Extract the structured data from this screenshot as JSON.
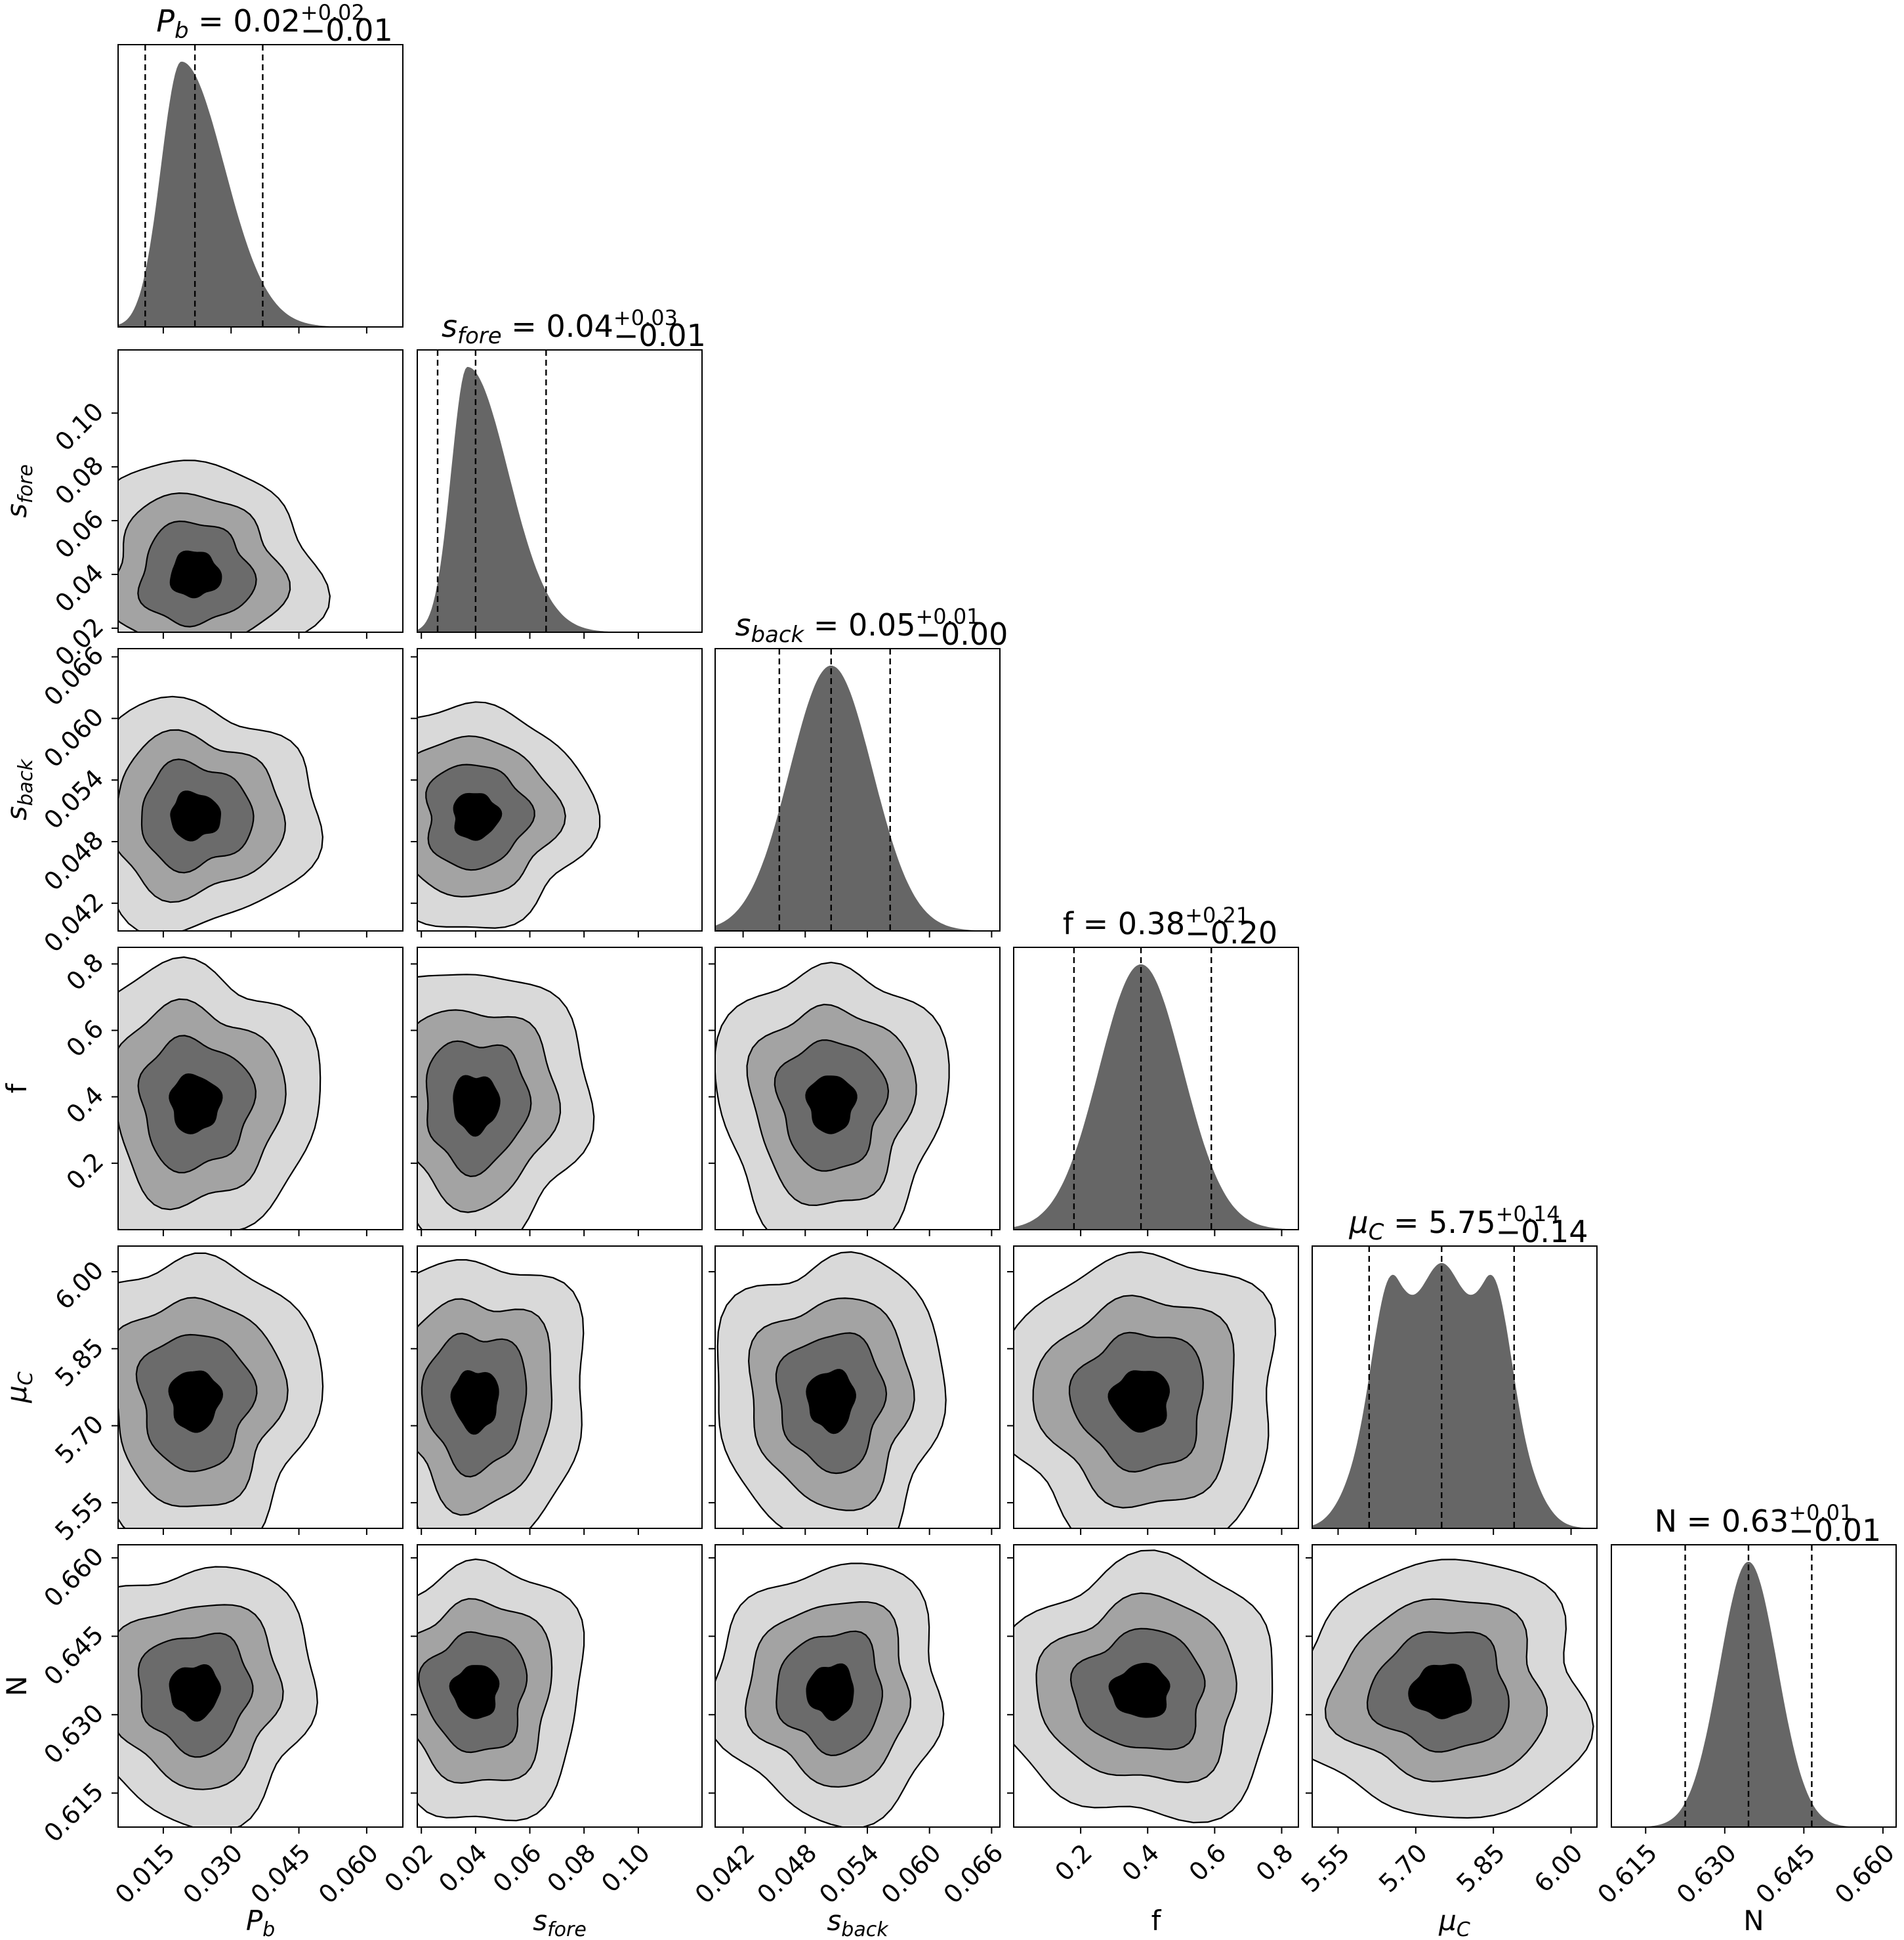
{
  "chart_data": {
    "type": "corner",
    "parameters": [
      {
        "key": "Pb",
        "sym": "P",
        "sub": "b",
        "italic": true,
        "median": 0.022,
        "q16": 0.011,
        "q84": 0.037,
        "range": [
          0.005,
          0.068
        ],
        "ticks": [
          "0.015",
          "0.030",
          "0.045",
          "0.060"
        ],
        "title": {
          "lhs_sym": "P",
          "lhs_sub": "b",
          "value": "0.02",
          "plus": "+0.02",
          "minus": "−0.01"
        }
      },
      {
        "key": "sfore",
        "sym": "s",
        "sub": "fore",
        "italic": true,
        "median": 0.04,
        "q16": 0.026,
        "q84": 0.066,
        "range": [
          0.0185,
          0.1235
        ],
        "ticks": [
          "0.02",
          "0.04",
          "0.06",
          "0.08",
          "0.10"
        ],
        "title": {
          "lhs_sym": "s",
          "lhs_sub": "fore",
          "value": "0.04",
          "plus": "+0.03",
          "minus": "−0.01"
        }
      },
      {
        "key": "sback",
        "sym": "s",
        "sub": "back",
        "italic": true,
        "median": 0.0505,
        "q16": 0.0455,
        "q84": 0.0562,
        "range": [
          0.0393,
          0.0668
        ],
        "ticks": [
          "0.042",
          "0.048",
          "0.054",
          "0.060",
          "0.066"
        ],
        "title": {
          "lhs_sym": "s",
          "lhs_sub": "back",
          "value": "0.05",
          "plus": "+0.01",
          "minus": "−0.00"
        }
      },
      {
        "key": "f",
        "sym": "f",
        "sub": "",
        "italic": false,
        "median": 0.38,
        "q16": 0.18,
        "q84": 0.59,
        "range": [
          0.0,
          0.85
        ],
        "ticks": [
          "0.2",
          "0.4",
          "0.6",
          "0.8"
        ],
        "title": {
          "lhs_sym": "f",
          "lhs_sub": "",
          "value": "0.38",
          "plus": "+0.21",
          "minus": "−0.20"
        }
      },
      {
        "key": "muC",
        "sym": "μ",
        "sub": "C",
        "italic": true,
        "median": 5.75,
        "q16": 5.61,
        "q84": 5.89,
        "range": [
          5.5,
          6.05
        ],
        "ticks": [
          "5.55",
          "5.70",
          "5.85",
          "6.00"
        ],
        "title": {
          "lhs_sym": "μ",
          "lhs_sub": "C",
          "value": "5.75",
          "plus": "+0.14",
          "minus": "−0.14"
        }
      },
      {
        "key": "N",
        "sym": "N",
        "sub": "",
        "italic": false,
        "median": 0.6345,
        "q16": 0.6225,
        "q84": 0.6465,
        "range": [
          0.6085,
          0.6625
        ],
        "ticks": [
          "0.615",
          "0.630",
          "0.645",
          "0.660"
        ],
        "title": {
          "lhs_sym": "N",
          "lhs_sub": "",
          "value": "0.63",
          "plus": "+0.01",
          "minus": "−0.01"
        }
      }
    ],
    "histograms": {
      "Pb": {
        "shape": "skewed",
        "peak": 0.019,
        "sigma_left": 0.0045,
        "sigma_right": 0.0095
      },
      "sfore": {
        "shape": "skewed",
        "peak": 0.037,
        "sigma_left": 0.006,
        "sigma_right": 0.015
      },
      "sback": {
        "shape": "gaussian",
        "peak": 0.0505,
        "sigma": 0.004
      },
      "f": {
        "shape": "gaussian",
        "peak": 0.38,
        "sigma": 0.125
      },
      "muC": {
        "shape": "flat_top",
        "peak": 5.75,
        "half_width": 0.085,
        "edge_sigma": 0.055
      },
      "N": {
        "shape": "gaussian",
        "peak": 0.6345,
        "sigma": 0.0055
      }
    },
    "contour_levels": 4,
    "contour_fills": [
      "#d9d9d9",
      "#a3a3a3",
      "#6b6b6b",
      "#000000"
    ],
    "histogram_fill": "#666666",
    "quantile_line_style": "dashed"
  }
}
